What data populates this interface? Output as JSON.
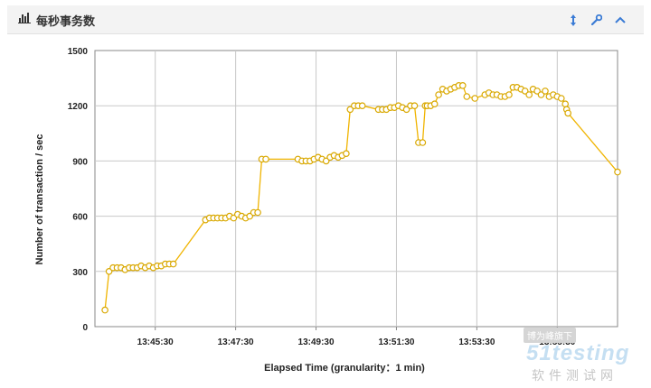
{
  "panel": {
    "title": "每秒事务数",
    "icons": [
      "bar-chart-icon",
      "vertical-arrows-icon",
      "wrench-icon",
      "chevron-up-icon"
    ]
  },
  "watermark": {
    "line1": "博为峰旗下",
    "line2": "51testing",
    "line3": "软件测试网"
  },
  "chart_data": {
    "type": "line",
    "xlabel": "Elapsed Time (granularity：1 min)",
    "ylabel": "Number of transaction / sec",
    "yticks": [
      "1500",
      "1200",
      "900",
      "600",
      "300",
      "0"
    ],
    "ylim": [
      0,
      1500
    ],
    "xticks": [
      "13:45:30",
      "13:47:30",
      "13:49:30",
      "13:51:30",
      "13:53:30",
      "13:55:30"
    ],
    "grid": true,
    "line_color": "#f0b400",
    "series": [
      {
        "x": [
          "13:44:15",
          "13:44:21",
          "13:44:27",
          "13:44:33",
          "13:44:39",
          "13:44:45",
          "13:44:51",
          "13:44:57",
          "13:45:03",
          "13:45:09",
          "13:45:15",
          "13:45:21",
          "13:45:27",
          "13:45:33",
          "13:45:39",
          "13:45:45",
          "13:45:51",
          "13:45:57",
          "13:46:45",
          "13:46:51",
          "13:46:57",
          "13:47:03",
          "13:47:09",
          "13:47:15",
          "13:47:21",
          "13:47:27",
          "13:47:33",
          "13:47:39",
          "13:47:45",
          "13:47:51",
          "13:47:57",
          "13:48:03",
          "13:48:09",
          "13:48:15",
          "13:49:03",
          "13:49:09",
          "13:49:15",
          "13:49:21",
          "13:49:27",
          "13:49:33",
          "13:49:39",
          "13:49:45",
          "13:49:51",
          "13:49:57",
          "13:50:03",
          "13:50:09",
          "13:50:15",
          "13:50:21",
          "13:50:27",
          "13:50:33",
          "13:50:39",
          "13:51:03",
          "13:51:09",
          "13:51:15",
          "13:51:21",
          "13:51:27",
          "13:51:33",
          "13:51:39",
          "13:51:45",
          "13:51:51",
          "13:51:57",
          "13:52:03",
          "13:52:09",
          "13:52:13",
          "13:52:16",
          "13:52:21",
          "13:52:27",
          "13:52:33",
          "13:52:39",
          "13:52:45",
          "13:52:51",
          "13:52:57",
          "13:53:03",
          "13:53:09",
          "13:53:15",
          "13:53:27",
          "13:53:42",
          "13:53:48",
          "13:53:54",
          "13:54:00",
          "13:54:06",
          "13:54:12",
          "13:54:18",
          "13:54:24",
          "13:54:30",
          "13:54:36",
          "13:54:42",
          "13:54:48",
          "13:54:54",
          "13:55:00",
          "13:55:06",
          "13:55:12",
          "13:55:18",
          "13:55:24",
          "13:55:30",
          "13:55:36",
          "13:55:42",
          "13:55:44",
          "13:55:46",
          "13:57:00"
        ],
        "y": [
          90,
          300,
          320,
          320,
          320,
          310,
          320,
          320,
          320,
          330,
          320,
          330,
          320,
          330,
          330,
          340,
          340,
          340,
          580,
          590,
          590,
          590,
          590,
          590,
          600,
          590,
          610,
          600,
          590,
          600,
          620,
          620,
          910,
          910,
          910,
          900,
          900,
          900,
          910,
          920,
          910,
          900,
          920,
          930,
          920,
          930,
          940,
          1180,
          1200,
          1200,
          1200,
          1180,
          1180,
          1180,
          1190,
          1190,
          1200,
          1190,
          1180,
          1200,
          1200,
          1000,
          1000,
          1200,
          1200,
          1200,
          1210,
          1260,
          1290,
          1280,
          1290,
          1300,
          1310,
          1310,
          1250,
          1240,
          1260,
          1270,
          1260,
          1260,
          1250,
          1250,
          1260,
          1300,
          1300,
          1290,
          1280,
          1260,
          1290,
          1280,
          1260,
          1280,
          1250,
          1260,
          1250,
          1240,
          1210,
          1180,
          1160,
          840
        ]
      }
    ]
  }
}
